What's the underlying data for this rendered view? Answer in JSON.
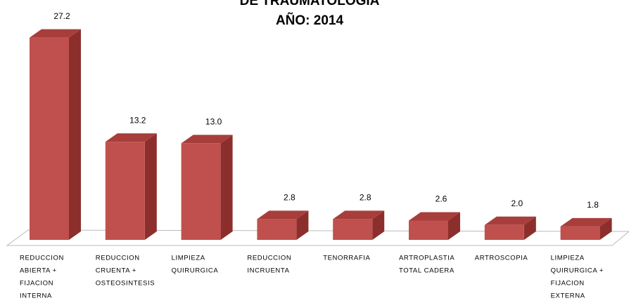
{
  "chart_data": {
    "type": "bar3d",
    "title": [
      "DE TRAUMATOLOGIA",
      "AÑO: 2014"
    ],
    "categories": [
      [
        "REDUCCION",
        "ABIERTA +",
        "FIJACION",
        "INTERNA"
      ],
      [
        "REDUCCION",
        "CRUENTA +",
        "OSTEOSINTESIS"
      ],
      [
        "LIMPIEZA",
        "QUIRURGICA"
      ],
      [
        "REDUCCION",
        "INCRUENTA"
      ],
      [
        "TENORRAFIA"
      ],
      [
        "ARTROPLASTIA",
        "TOTAL CADERA"
      ],
      [
        "ARTROSCOPIA"
      ],
      [
        "LIMPIEZA",
        "QUIRURGICA +",
        "FIJACION",
        "EXTERNA"
      ]
    ],
    "values": [
      27.2,
      13.2,
      13.0,
      2.8,
      2.8,
      2.6,
      2.0,
      1.8
    ],
    "value_labels": [
      "27.2",
      "13.2",
      "13.0",
      "2.8",
      "2.8",
      "2.6",
      "2.0",
      "1.8"
    ],
    "color": "#c0504d"
  }
}
